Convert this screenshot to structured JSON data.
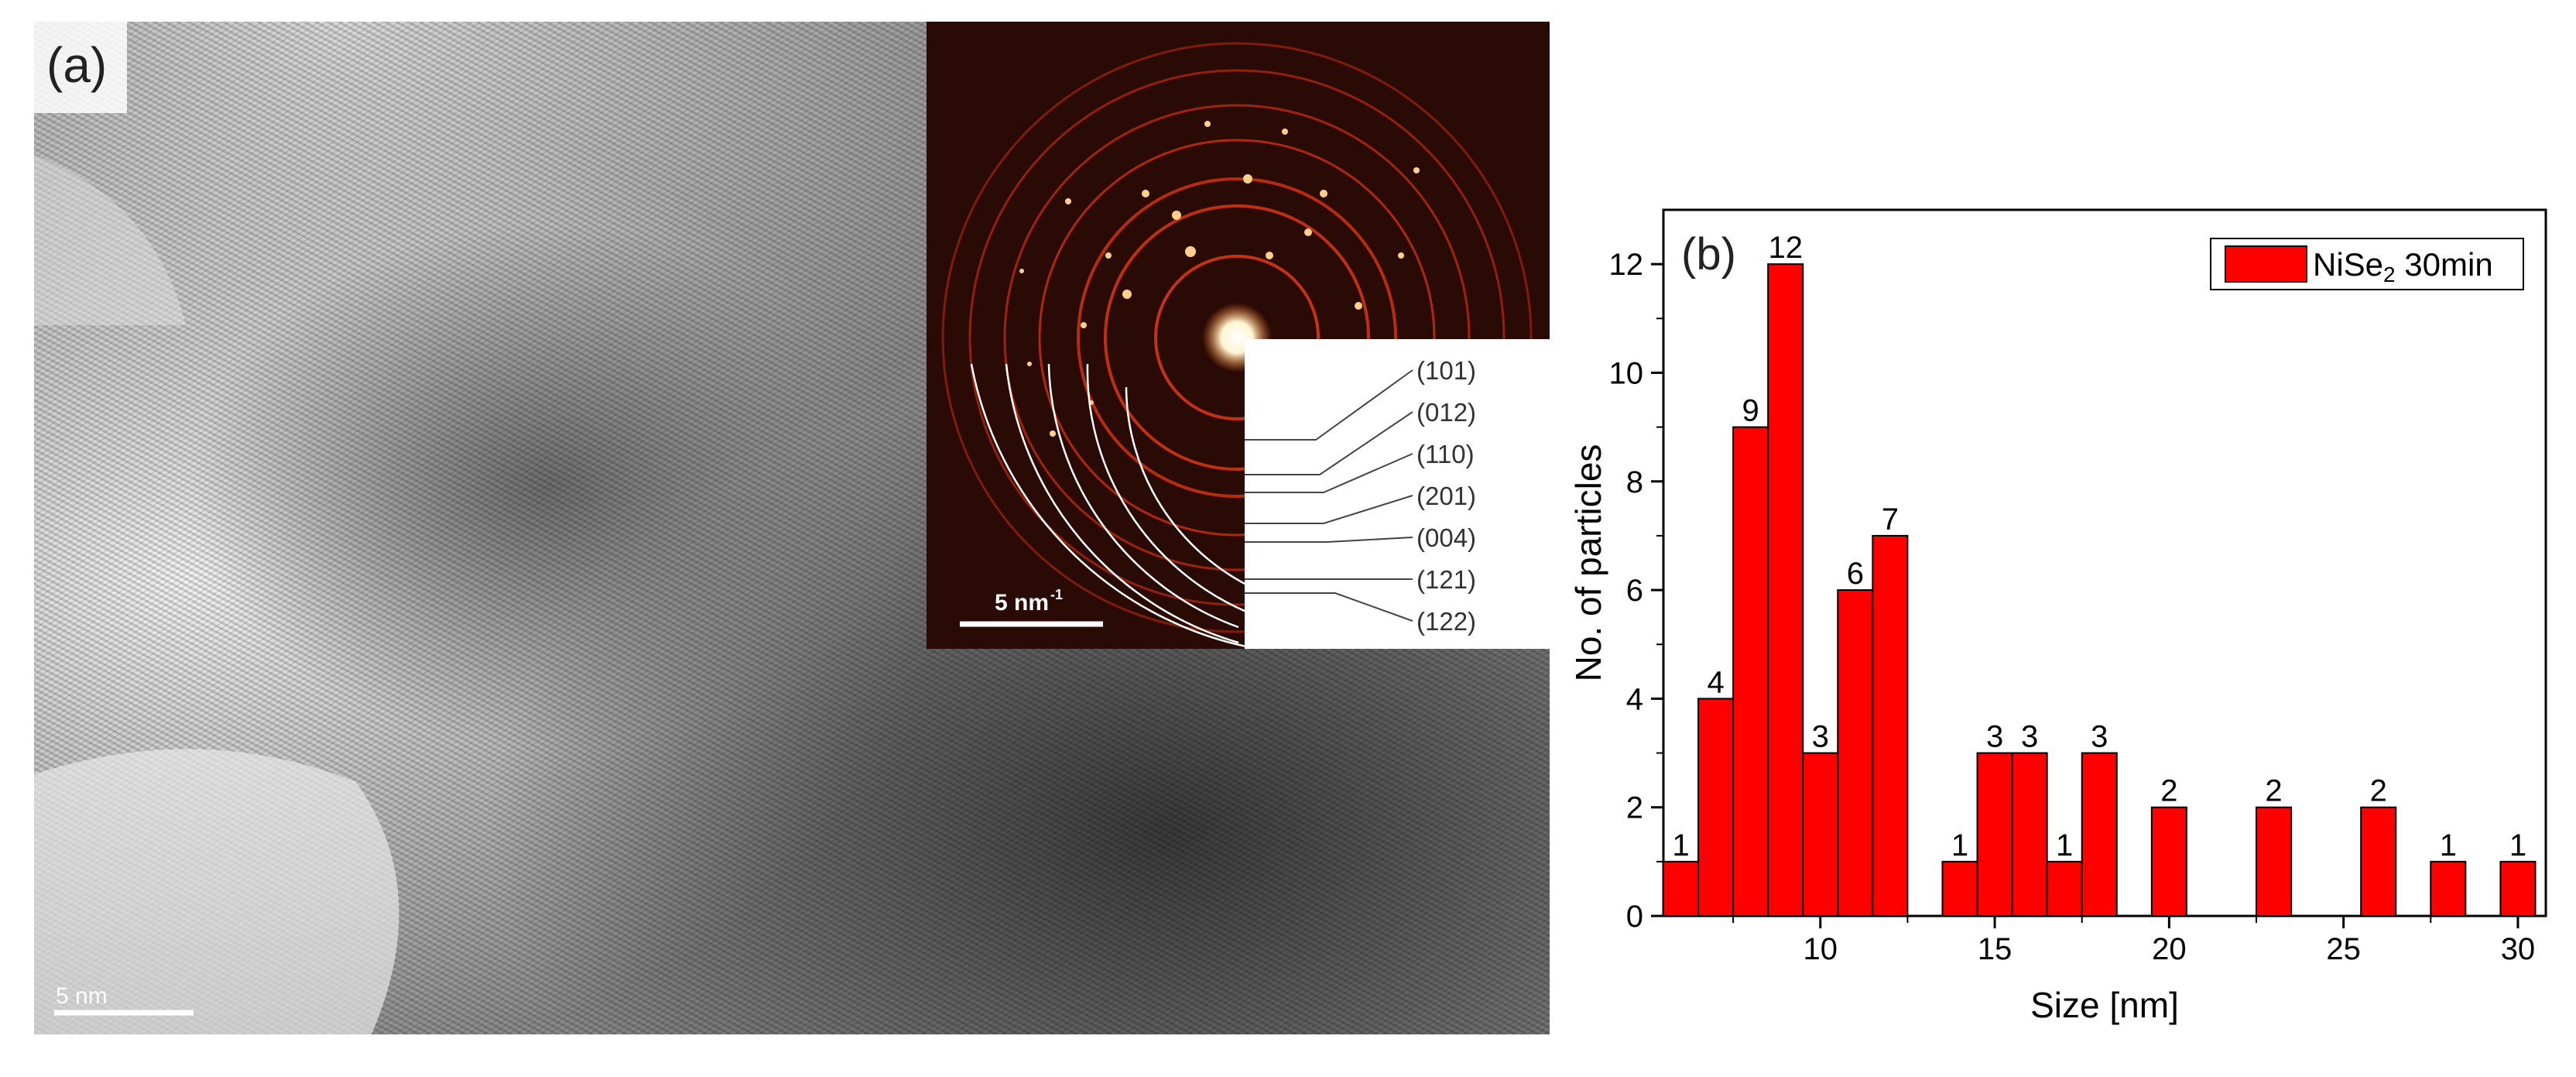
{
  "panel_a": {
    "label": "(a)",
    "scale_bar": "5 nm",
    "inset": {
      "scale_bar": "5 nm",
      "scale_bar_exp": "-1",
      "planes": [
        "(101)",
        "(012)",
        "(110)",
        "(201)",
        "(004)",
        "(121)",
        "(122)"
      ]
    }
  },
  "chart_data": {
    "type": "bar",
    "panel_label": "(b)",
    "title": "",
    "xlabel": "Size [nm]",
    "ylabel": "No. of particles",
    "legend": {
      "label": "NiSe",
      "subscript": "2",
      "suffix": " 30min",
      "position": "top-right"
    },
    "bar_color": "#ff0000",
    "xlim": [
      5.5,
      30.8
    ],
    "ylim": [
      0,
      13
    ],
    "x_ticks": [
      10,
      15,
      20,
      25,
      30
    ],
    "y_ticks": [
      0,
      2,
      4,
      6,
      8,
      10,
      12
    ],
    "bin_width": 1.0,
    "series": [
      {
        "name": "NiSe2 30min",
        "bins": [
          {
            "x": 6.0,
            "value": 1
          },
          {
            "x": 7.0,
            "value": 4
          },
          {
            "x": 8.0,
            "value": 9
          },
          {
            "x": 9.0,
            "value": 12
          },
          {
            "x": 10.0,
            "value": 3
          },
          {
            "x": 11.0,
            "value": 6
          },
          {
            "x": 12.0,
            "value": 7
          },
          {
            "x": 14.0,
            "value": 1
          },
          {
            "x": 15.0,
            "value": 3
          },
          {
            "x": 16.0,
            "value": 3
          },
          {
            "x": 17.0,
            "value": 1
          },
          {
            "x": 18.0,
            "value": 3
          },
          {
            "x": 20.0,
            "value": 2
          },
          {
            "x": 23.0,
            "value": 2
          },
          {
            "x": 26.0,
            "value": 2
          },
          {
            "x": 28.0,
            "value": 1
          },
          {
            "x": 30.0,
            "value": 1
          }
        ]
      }
    ]
  }
}
